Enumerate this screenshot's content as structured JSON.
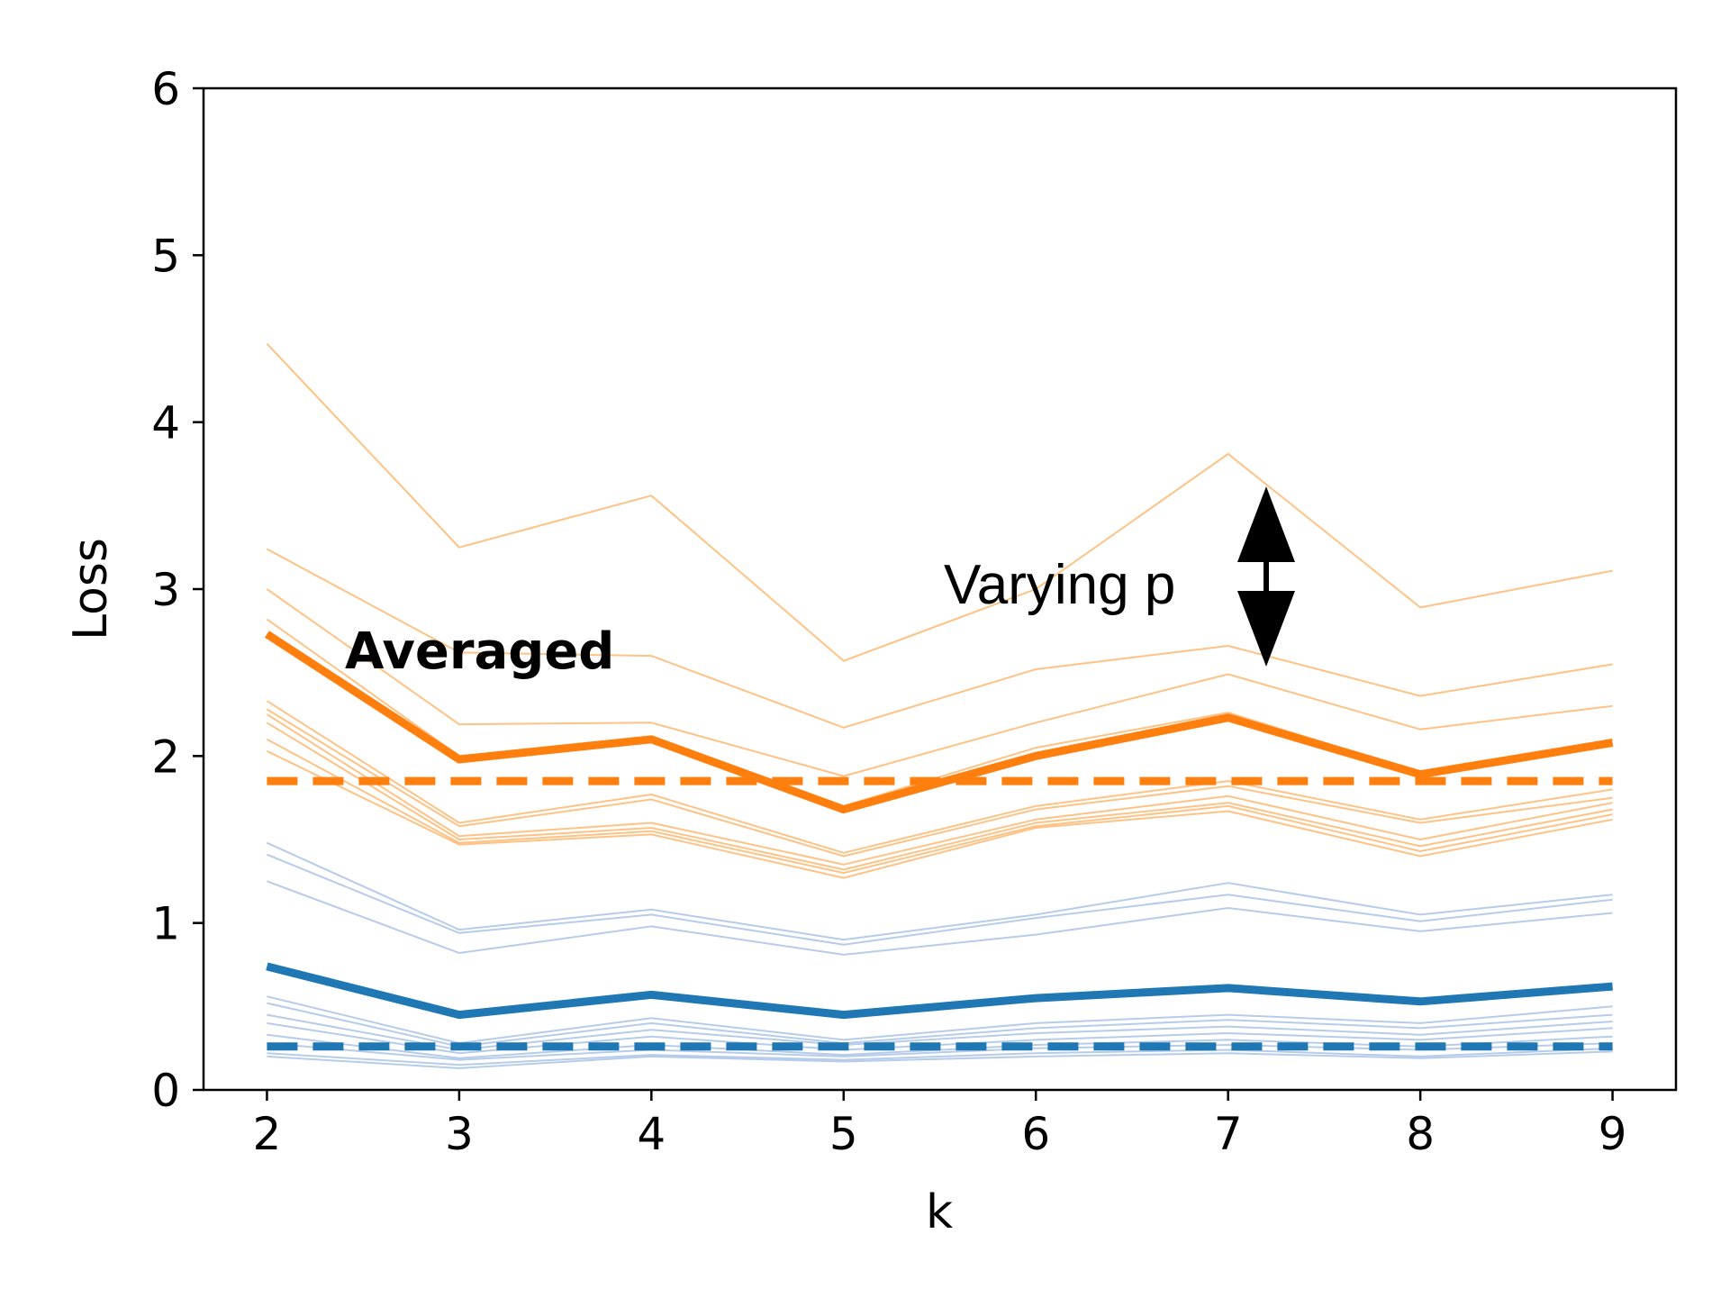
{
  "chart_data": {
    "type": "line",
    "title": "",
    "xlabel": "k",
    "ylabel": "Loss",
    "x": [
      2,
      3,
      4,
      5,
      6,
      7,
      8,
      9
    ],
    "xticks": [
      "2",
      "3",
      "4",
      "5",
      "6",
      "7",
      "8",
      "9"
    ],
    "yticks": [
      "0",
      "1",
      "2",
      "3",
      "4",
      "5",
      "6"
    ],
    "xlim": [
      1.67,
      9.33
    ],
    "ylim": [
      0,
      6
    ],
    "grid": false,
    "colors": {
      "orange": "#ff7f0e",
      "orange_light": "#ffbb78",
      "blue": "#1f77b4",
      "blue_light": "#aec7e8"
    },
    "annotations": {
      "averaged": "Averaged",
      "varying_p": "Varying p"
    },
    "series": [
      {
        "name": "orange-thin-1",
        "group": "orange",
        "style": "thin",
        "values": [
          4.47,
          3.25,
          3.56,
          2.57,
          3.0,
          3.81,
          2.89,
          3.11
        ]
      },
      {
        "name": "orange-thin-2",
        "group": "orange",
        "style": "thin",
        "values": [
          3.24,
          2.62,
          2.6,
          2.17,
          2.52,
          2.66,
          2.36,
          2.55
        ]
      },
      {
        "name": "orange-thin-3",
        "group": "orange",
        "style": "thin",
        "values": [
          3.0,
          2.19,
          2.2,
          1.88,
          2.2,
          2.49,
          2.16,
          2.3
        ]
      },
      {
        "name": "orange-thin-4",
        "group": "orange",
        "style": "thin",
        "values": [
          2.82,
          2.0,
          2.1,
          1.7,
          2.05,
          2.26,
          1.9,
          2.1
        ]
      },
      {
        "name": "orange-thin-5",
        "group": "orange",
        "style": "thin",
        "values": [
          2.33,
          1.6,
          1.77,
          1.42,
          1.7,
          1.85,
          1.62,
          1.8
        ]
      },
      {
        "name": "orange-thin-6",
        "group": "orange",
        "style": "thin",
        "values": [
          2.28,
          1.58,
          1.74,
          1.4,
          1.68,
          1.82,
          1.6,
          1.75
        ]
      },
      {
        "name": "orange-thin-7",
        "group": "orange",
        "style": "thin",
        "values": [
          2.25,
          1.52,
          1.6,
          1.35,
          1.62,
          1.76,
          1.5,
          1.72
        ]
      },
      {
        "name": "orange-thin-8",
        "group": "orange",
        "style": "thin",
        "values": [
          2.2,
          1.5,
          1.57,
          1.32,
          1.6,
          1.72,
          1.46,
          1.68
        ]
      },
      {
        "name": "orange-thin-9",
        "group": "orange",
        "style": "thin",
        "values": [
          2.1,
          1.48,
          1.55,
          1.3,
          1.58,
          1.7,
          1.43,
          1.65
        ]
      },
      {
        "name": "orange-thin-10",
        "group": "orange",
        "style": "thin",
        "values": [
          2.03,
          1.47,
          1.53,
          1.27,
          1.57,
          1.67,
          1.4,
          1.62
        ]
      },
      {
        "name": "orange-averaged",
        "group": "orange",
        "style": "thick",
        "values": [
          2.73,
          1.98,
          2.1,
          1.68,
          2.0,
          2.23,
          1.89,
          2.08
        ]
      },
      {
        "name": "orange-baseline",
        "group": "orange",
        "style": "dashed",
        "values": [
          1.85,
          1.85,
          1.85,
          1.85,
          1.85,
          1.85,
          1.85,
          1.85
        ]
      },
      {
        "name": "blue-thin-1",
        "group": "blue",
        "style": "thin",
        "values": [
          1.48,
          0.96,
          1.08,
          0.9,
          1.05,
          1.24,
          1.05,
          1.17
        ]
      },
      {
        "name": "blue-thin-2",
        "group": "blue",
        "style": "thin",
        "values": [
          1.41,
          0.94,
          1.05,
          0.87,
          1.03,
          1.17,
          1.01,
          1.14
        ]
      },
      {
        "name": "blue-thin-3",
        "group": "blue",
        "style": "thin",
        "values": [
          1.25,
          0.82,
          0.98,
          0.81,
          0.93,
          1.09,
          0.95,
          1.06
        ]
      },
      {
        "name": "blue-thin-4",
        "group": "blue",
        "style": "thin",
        "values": [
          0.56,
          0.28,
          0.43,
          0.3,
          0.4,
          0.45,
          0.4,
          0.5
        ]
      },
      {
        "name": "blue-thin-5",
        "group": "blue",
        "style": "thin",
        "values": [
          0.52,
          0.26,
          0.4,
          0.28,
          0.37,
          0.42,
          0.37,
          0.45
        ]
      },
      {
        "name": "blue-thin-6",
        "group": "blue",
        "style": "thin",
        "values": [
          0.45,
          0.24,
          0.36,
          0.27,
          0.34,
          0.38,
          0.33,
          0.41
        ]
      },
      {
        "name": "blue-thin-7",
        "group": "blue",
        "style": "thin",
        "values": [
          0.4,
          0.22,
          0.32,
          0.24,
          0.3,
          0.34,
          0.3,
          0.37
        ]
      },
      {
        "name": "blue-thin-8",
        "group": "blue",
        "style": "thin",
        "values": [
          0.33,
          0.19,
          0.27,
          0.21,
          0.27,
          0.3,
          0.26,
          0.32
        ]
      },
      {
        "name": "blue-thin-9",
        "group": "blue",
        "style": "thin",
        "values": [
          0.28,
          0.18,
          0.24,
          0.2,
          0.25,
          0.27,
          0.24,
          0.28
        ]
      },
      {
        "name": "blue-thin-10",
        "group": "blue",
        "style": "thin",
        "values": [
          0.22,
          0.15,
          0.21,
          0.18,
          0.22,
          0.24,
          0.2,
          0.25
        ]
      },
      {
        "name": "blue-thin-11",
        "group": "blue",
        "style": "thin",
        "values": [
          0.2,
          0.13,
          0.2,
          0.17,
          0.2,
          0.22,
          0.19,
          0.23
        ]
      },
      {
        "name": "blue-averaged",
        "group": "blue",
        "style": "thick",
        "values": [
          0.74,
          0.45,
          0.57,
          0.45,
          0.55,
          0.61,
          0.53,
          0.62
        ]
      },
      {
        "name": "blue-baseline",
        "group": "blue",
        "style": "dashed",
        "values": [
          0.26,
          0.26,
          0.26,
          0.26,
          0.26,
          0.26,
          0.26,
          0.26
        ]
      }
    ]
  }
}
